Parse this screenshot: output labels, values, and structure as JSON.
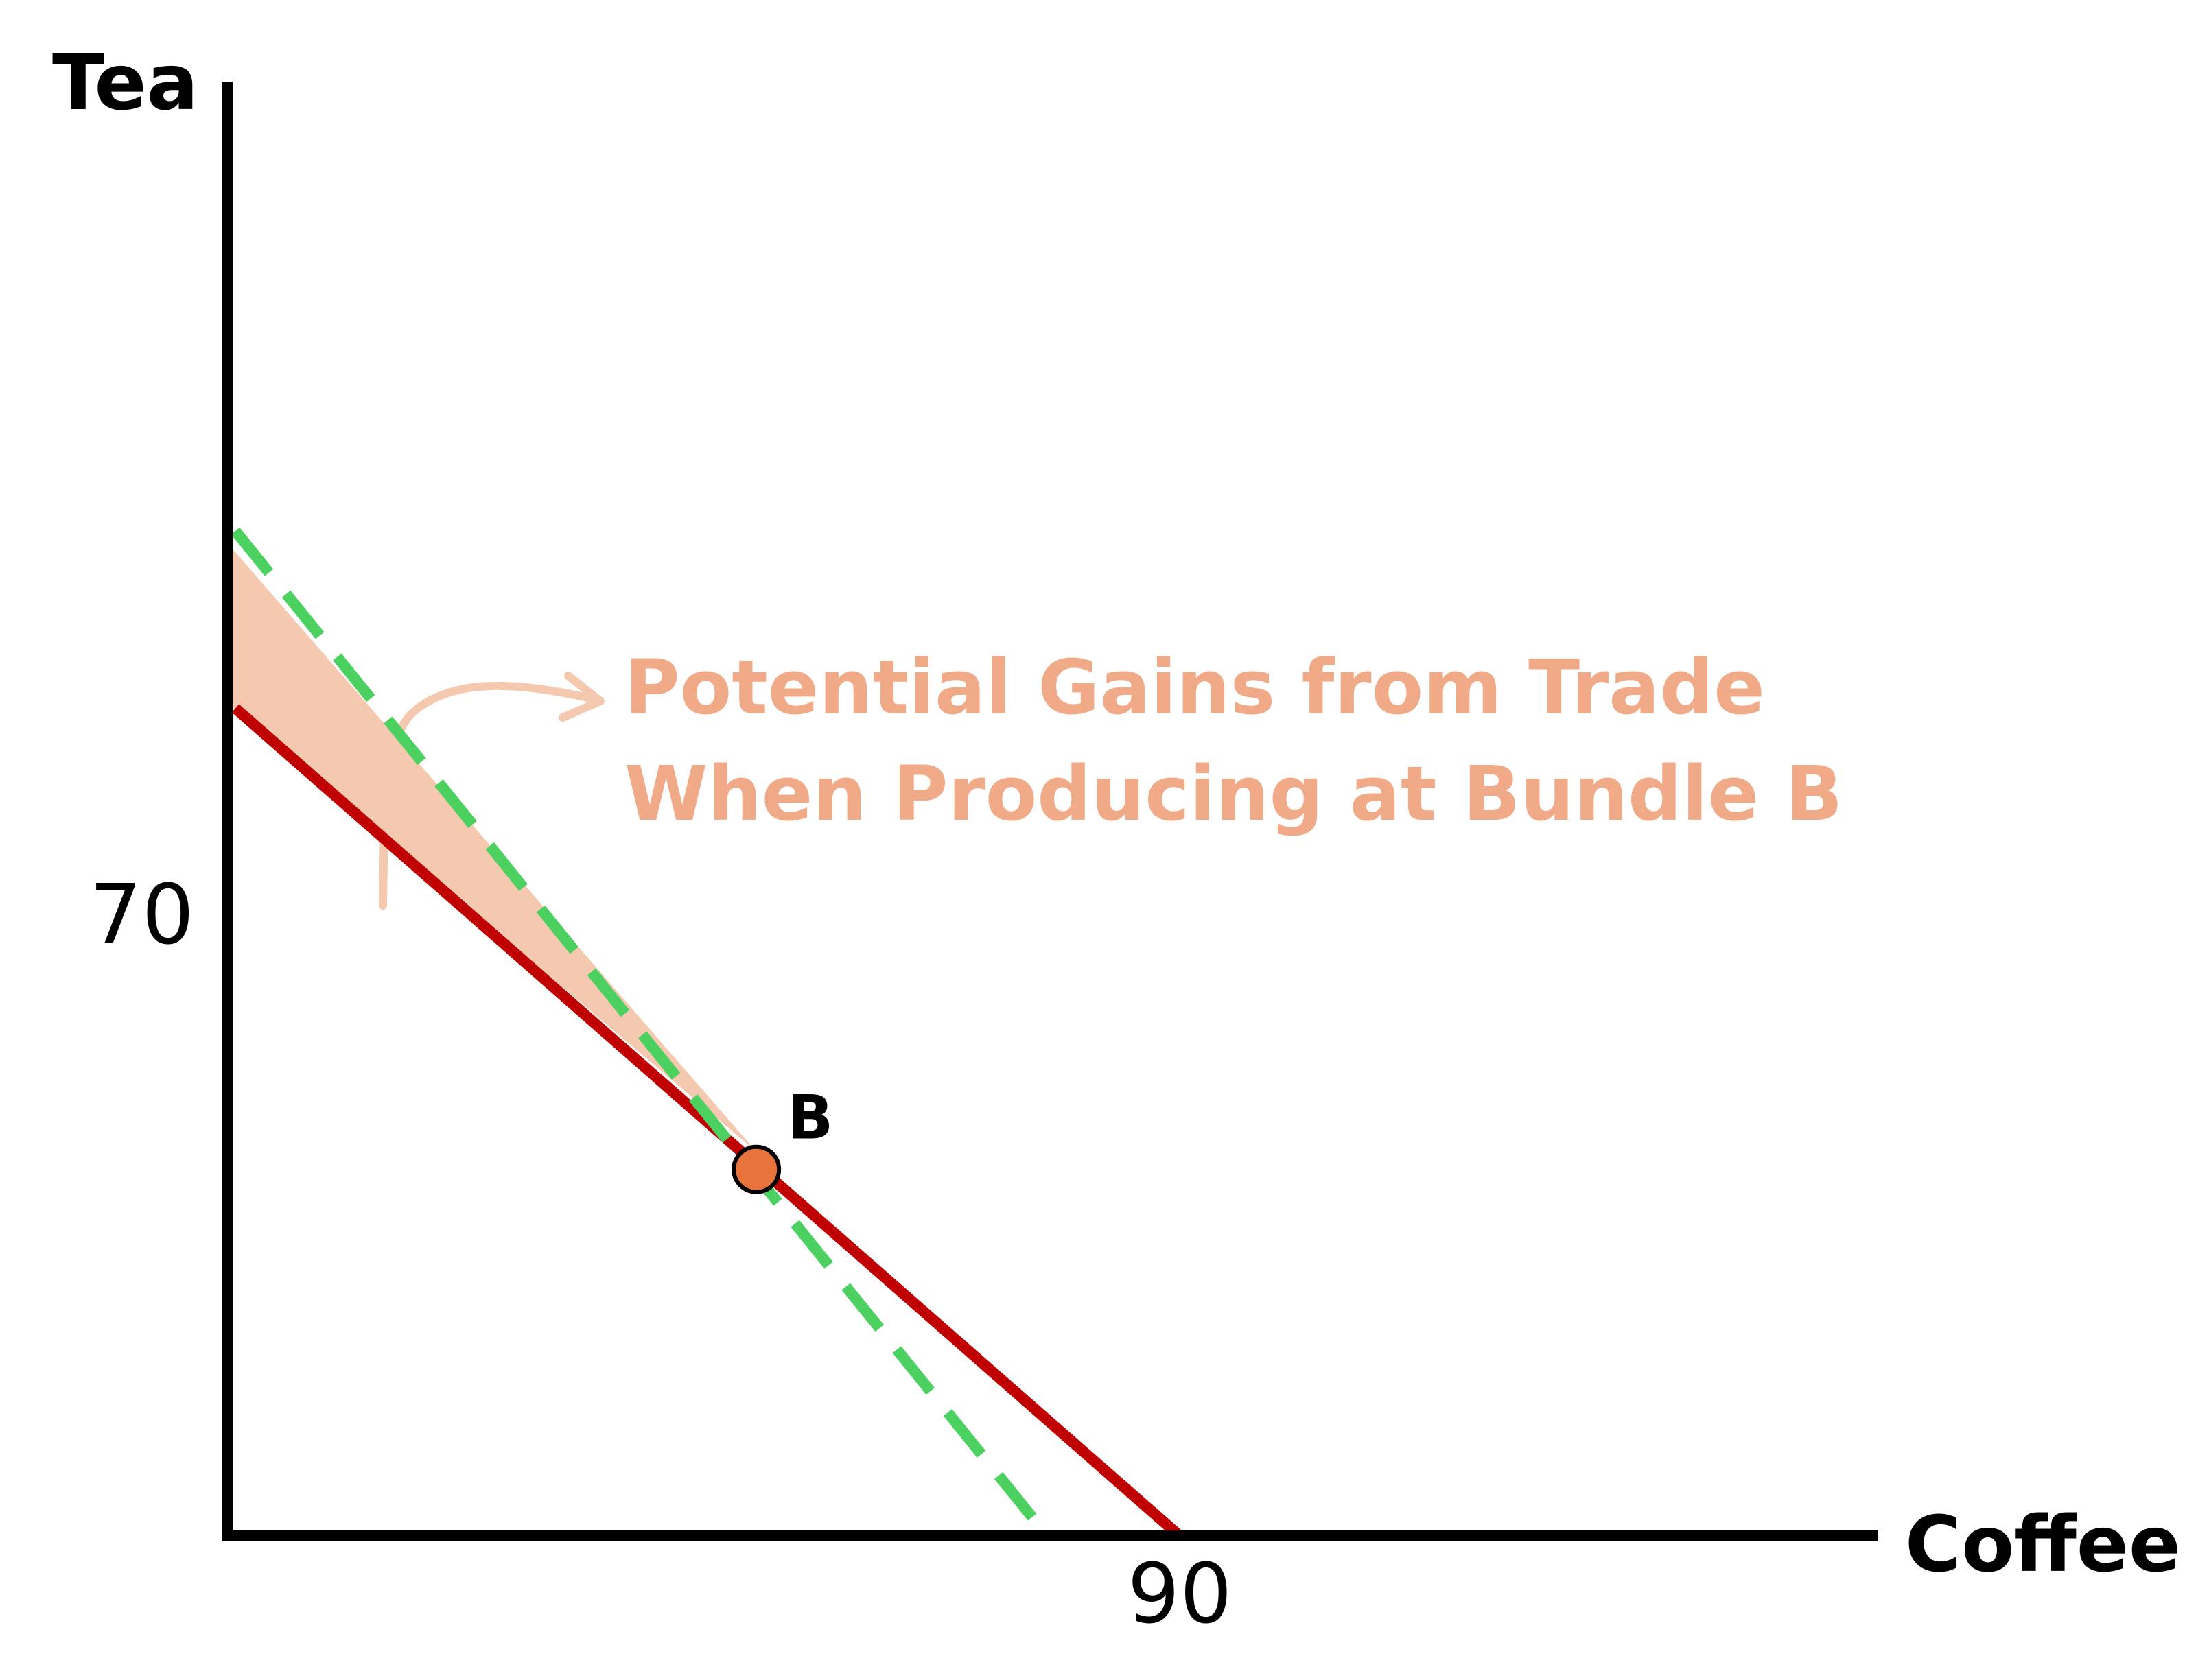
{
  "chart_data": {
    "type": "line",
    "xlabel": "Coffee",
    "ylabel": "Tea",
    "xlim": [
      0,
      156
    ],
    "ylim": [
      0,
      123
    ],
    "grid": false,
    "x_ticks": [
      {
        "value": 90,
        "label": "90"
      }
    ],
    "y_ticks": [
      {
        "value": 70,
        "label": "70"
      }
    ],
    "series": [
      {
        "role": "production-possibilities-frontier",
        "style": "solid",
        "color": "#c00000",
        "points": [
          [
            0,
            70
          ],
          [
            90,
            0
          ]
        ]
      },
      {
        "role": "trade-line",
        "style": "dashed",
        "color": "#4cd060",
        "points": [
          [
            0,
            85
          ],
          [
            77.5,
            0
          ]
        ]
      }
    ],
    "shaded_region": {
      "role": "potential-gains-from-trade",
      "color": "#f5c8b0",
      "points": [
        [
          0,
          84
        ],
        [
          0,
          70.5
        ],
        [
          50,
          32.5
        ]
      ]
    },
    "points": [
      {
        "label": "B",
        "x": 50,
        "y": 31,
        "color": "#e8743b"
      }
    ],
    "annotations": [
      {
        "lines": [
          "Potential Gains from Trade",
          "When Producing at Bundle B"
        ],
        "color": "#f0aa88",
        "arrow_color": "#f5c8b0"
      }
    ]
  }
}
